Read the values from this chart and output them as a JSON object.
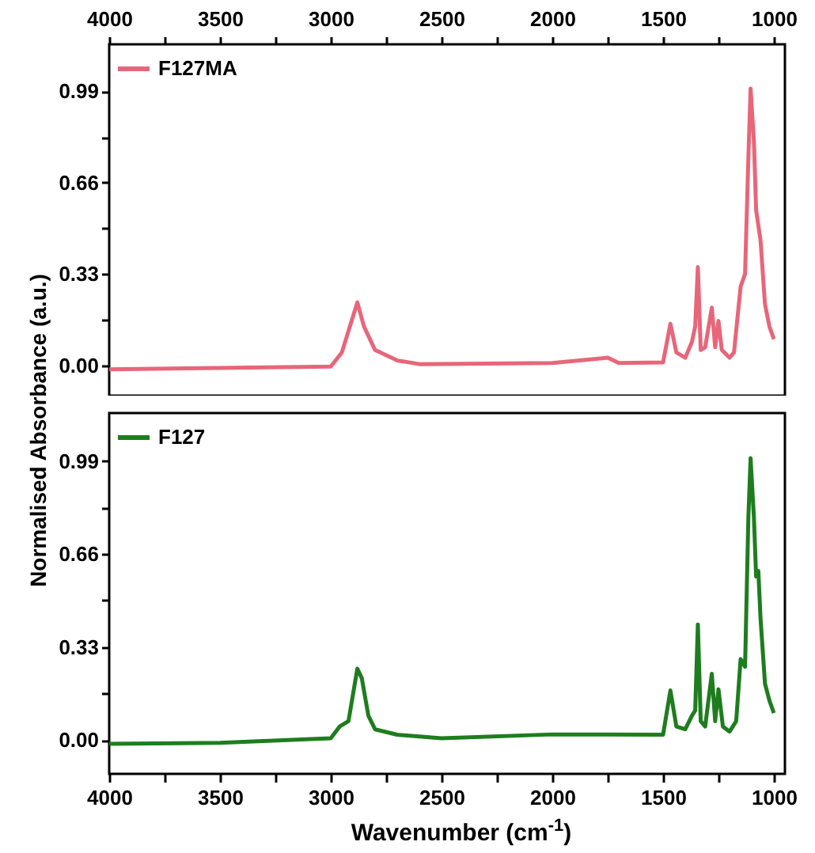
{
  "chart_data": [
    {
      "type": "line",
      "ylabel": "Normalised Absorbance (a.u.)",
      "legend": "top left",
      "grid": false,
      "xlim": [
        4000,
        950
      ],
      "xticks": [
        4000,
        {
          "value": 3750,
          "label": null
        },
        3500,
        {
          "value": 3250,
          "label": null
        },
        3000,
        {
          "value": 2750,
          "label": null
        },
        2500,
        {
          "value": 2250,
          "label": null
        },
        2000,
        {
          "value": 1750,
          "label": null
        },
        1500,
        {
          "value": 1250,
          "label": null
        },
        1000
      ],
      "ylim": [
        -0.11,
        1.16
      ],
      "yticks": [
        {
          "value": 0,
          "label": "0.00"
        },
        {
          "value": 0.165,
          "label": null
        },
        0.33,
        {
          "value": 0.495,
          "label": null
        },
        0.66,
        {
          "value": 0.825,
          "label": null
        },
        0.99
      ],
      "series": [
        {
          "name": "F127MA",
          "color": "#e8667a",
          "x": [
            4000,
            3500,
            3000,
            2950,
            2880,
            2850,
            2800,
            2700,
            2600,
            2000,
            1750,
            1700,
            1500,
            1467,
            1440,
            1400,
            1370,
            1355,
            1343,
            1330,
            1310,
            1280,
            1265,
            1250,
            1235,
            1200,
            1180,
            1150,
            1130,
            1115,
            1105,
            1090,
            1080,
            1060,
            1040,
            1020,
            1000
          ],
          "values": [
            -0.015,
            -0.01,
            -0.005,
            0.046,
            0.227,
            0.14,
            0.055,
            0.017,
            0.004,
            0.008,
            0.027,
            0.008,
            0.01,
            0.15,
            0.046,
            0.027,
            0.084,
            0.14,
            0.355,
            0.055,
            0.065,
            0.208,
            0.065,
            0.16,
            0.055,
            0.027,
            0.046,
            0.284,
            0.33,
            0.75,
            1.0,
            0.81,
            0.56,
            0.45,
            0.22,
            0.14,
            0.094
          ]
        }
      ]
    },
    {
      "type": "line",
      "xlabel": "Wavenumber (cm$^{-1}$)",
      "legend": "top left",
      "grid": false,
      "xlim": [
        4000,
        950
      ],
      "xticks": [
        4000,
        {
          "value": 3750,
          "label": null
        },
        3500,
        {
          "value": 3250,
          "label": null
        },
        3000,
        {
          "value": 2750,
          "label": null
        },
        2500,
        {
          "value": 2250,
          "label": null
        },
        2000,
        {
          "value": 1750,
          "label": null
        },
        1500,
        {
          "value": 1250,
          "label": null
        },
        1000
      ],
      "ylim": [
        -0.12,
        1.16
      ],
      "yticks": [
        {
          "value": 0,
          "label": "0.00"
        },
        {
          "value": 0.165,
          "label": null
        },
        0.33,
        {
          "value": 0.495,
          "label": null
        },
        0.66,
        {
          "value": 0.825,
          "label": null
        },
        0.99
      ],
      "series": [
        {
          "name": "F127",
          "color": "#1e7d1e",
          "x": [
            4000,
            3500,
            3000,
            2960,
            2920,
            2880,
            2860,
            2830,
            2800,
            2700,
            2500,
            2000,
            1500,
            1467,
            1440,
            1400,
            1370,
            1355,
            1343,
            1330,
            1310,
            1280,
            1265,
            1250,
            1230,
            1200,
            1170,
            1150,
            1130,
            1115,
            1105,
            1090,
            1080,
            1070,
            1060,
            1040,
            1020,
            1000
          ],
          "values": [
            -0.013,
            -0.01,
            0.006,
            0.048,
            0.067,
            0.253,
            0.22,
            0.086,
            0.038,
            0.019,
            0.006,
            0.02,
            0.019,
            0.176,
            0.048,
            0.038,
            0.086,
            0.105,
            0.41,
            0.067,
            0.048,
            0.235,
            0.067,
            0.18,
            0.048,
            0.03,
            0.067,
            0.287,
            0.26,
            0.79,
            1.0,
            0.79,
            0.58,
            0.6,
            0.43,
            0.2,
            0.14,
            0.096
          ]
        }
      ]
    }
  ]
}
